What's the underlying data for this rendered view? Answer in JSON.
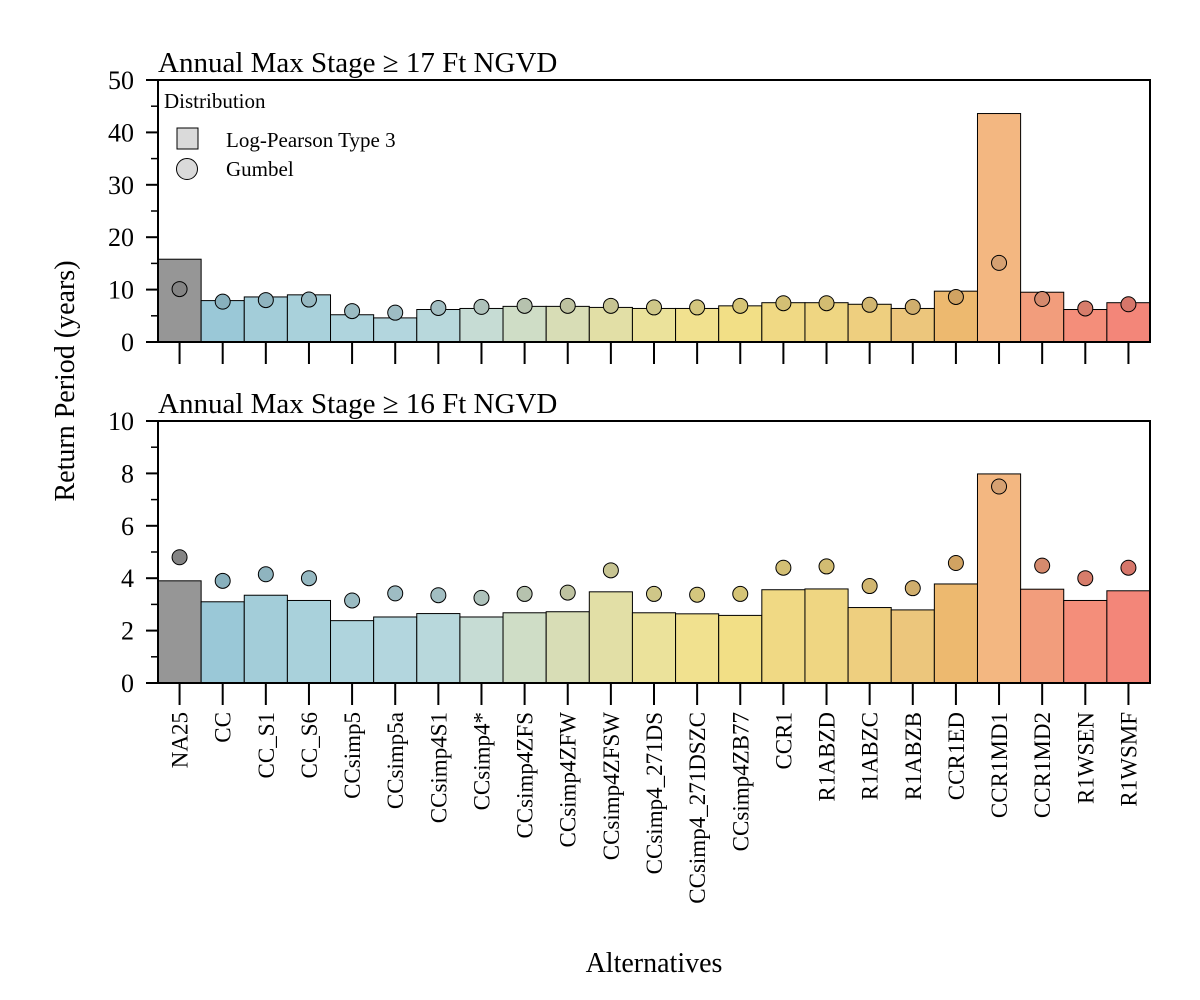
{
  "chart_data": {
    "type": "bar",
    "ylabel": "Return Period (years)",
    "xlabel": "Alternatives",
    "legend": {
      "title": "Distribution",
      "placement": "top-left",
      "entries": [
        {
          "label": "Log-Pearson Type 3",
          "marker": "bar"
        },
        {
          "label": "Gumbel",
          "marker": "circle"
        }
      ]
    },
    "categories": [
      "NA25",
      "CC",
      "CC_S1",
      "CC_S6",
      "CCsimp5",
      "CCsimp5a",
      "CCsimp4S1",
      "CCsimp4*",
      "CCsimp4ZFS",
      "CCsimp4ZFW",
      "CCsimp4ZFSW",
      "CCsimp4_271DS",
      "CCsimp4_271DSZC",
      "CCsimp4ZB77",
      "CCR1",
      "R1ABZD",
      "R1ABZC",
      "R1ABZB",
      "CCR1ED",
      "CCR1MD1",
      "CCR1MD2",
      "R1WSEN",
      "R1WSMF"
    ],
    "colors": [
      "#969696",
      "#9ac8d7",
      "#a3cdd9",
      "#a9d1db",
      "#afd4dd",
      "#b3d6de",
      "#b8d8dc",
      "#c6dcd4",
      "#cfddc6",
      "#d8ddb6",
      "#e2dfa6",
      "#ebe29b",
      "#f1e18f",
      "#f2df86",
      "#f0d984",
      "#efd682",
      "#eecf7f",
      "#ecc67c",
      "#edb96f",
      "#f3b781",
      "#f29d7c",
      "#f48e7a",
      "#f38679"
    ],
    "panels": [
      {
        "title": "Annual Max Stage ≥ 17 Ft NGVD",
        "ylim": [
          0,
          50
        ],
        "yticks": [
          "0",
          "10",
          "20",
          "30",
          "40",
          "50"
        ],
        "series": [
          {
            "name": "Log-Pearson Type 3",
            "type": "bar",
            "values": [
              15.8,
              7.9,
              8.6,
              9.0,
              5.2,
              4.6,
              6.2,
              6.4,
              6.8,
              6.8,
              6.6,
              6.4,
              6.4,
              6.9,
              7.5,
              7.5,
              7.2,
              6.4,
              9.7,
              43.6,
              9.5,
              6.2,
              7.5
            ]
          },
          {
            "name": "Gumbel",
            "type": "scatter",
            "values": [
              10.1,
              7.7,
              8.0,
              8.1,
              5.9,
              5.6,
              6.5,
              6.7,
              6.9,
              6.9,
              6.9,
              6.6,
              6.6,
              6.9,
              7.4,
              7.4,
              7.1,
              6.7,
              8.6,
              15.1,
              8.2,
              6.4,
              7.2
            ]
          }
        ]
      },
      {
        "title": "Annual Max Stage ≥ 16 Ft NGVD",
        "ylim": [
          0,
          10
        ],
        "yticks": [
          "0",
          "2",
          "4",
          "6",
          "8",
          "10"
        ],
        "series": [
          {
            "name": "Log-Pearson Type 3",
            "type": "bar",
            "values": [
              3.9,
              3.1,
              3.35,
              3.15,
              2.38,
              2.52,
              2.65,
              2.52,
              2.68,
              2.72,
              3.48,
              2.68,
              2.64,
              2.58,
              3.56,
              3.59,
              2.88,
              2.79,
              3.78,
              7.98,
              3.58,
              3.15,
              3.52
            ]
          },
          {
            "name": "Gumbel",
            "type": "scatter",
            "values": [
              4.8,
              3.9,
              4.15,
              4.0,
              3.15,
              3.42,
              3.35,
              3.25,
              3.4,
              3.45,
              4.3,
              3.4,
              3.37,
              3.4,
              4.4,
              4.45,
              3.7,
              3.62,
              4.58,
              7.5,
              4.48,
              4.0,
              4.4
            ]
          }
        ]
      }
    ]
  }
}
